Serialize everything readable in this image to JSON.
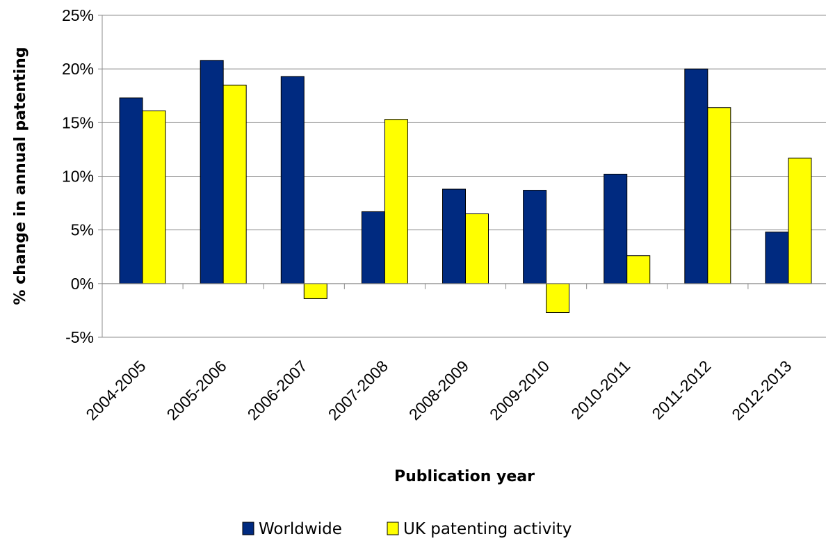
{
  "chart_data": {
    "type": "bar",
    "categories": [
      "2004-2005",
      "2005-2006",
      "2006-2007",
      "2007-2008",
      "2008-2009",
      "2009-2010",
      "2010-2011",
      "2011-2012",
      "2012-2013"
    ],
    "series": [
      {
        "name": "Worldwide",
        "color": "#002a80",
        "values": [
          17.3,
          20.8,
          19.3,
          6.7,
          8.8,
          8.7,
          10.2,
          20.0,
          4.8
        ]
      },
      {
        "name": "UK patenting activity",
        "color": "#ffff00",
        "values": [
          16.1,
          18.5,
          -1.4,
          15.3,
          6.5,
          -2.7,
          2.6,
          16.4,
          11.7
        ]
      }
    ],
    "xlabel": "Publication year",
    "ylabel": "% change in annual patenting",
    "ylim": [
      -5,
      25
    ],
    "yticks": [
      -5,
      0,
      5,
      10,
      15,
      20,
      25
    ],
    "ytick_labels": [
      "-5%",
      "0%",
      "5%",
      "10%",
      "15%",
      "20%",
      "25%"
    ],
    "grid": true,
    "legend_position": "bottom"
  }
}
